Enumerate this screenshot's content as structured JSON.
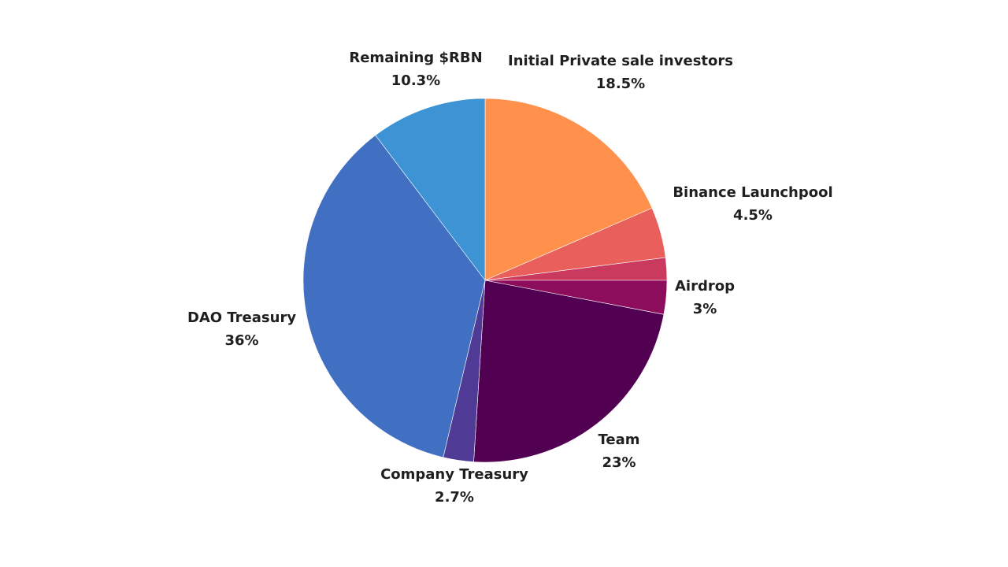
{
  "chart_data": {
    "type": "pie",
    "title": "",
    "slices": [
      {
        "name": "Initial Private sale investors",
        "value": 18.5,
        "display": "18.5%",
        "color": "#FF914D"
      },
      {
        "name": "Binance Launchpool",
        "value": 4.5,
        "display": "4.5%",
        "color": "#E85F5C"
      },
      {
        "name": "",
        "value": 2.0,
        "display": "",
        "color": "#C93A5E"
      },
      {
        "name": "Airdrop",
        "value": 3,
        "display": "3%",
        "color": "#8B0D5C"
      },
      {
        "name": "Team",
        "value": 23,
        "display": "23%",
        "color": "#520052"
      },
      {
        "name": "Company Treasury",
        "value": 2.7,
        "display": "2.7%",
        "color": "#4F3B96"
      },
      {
        "name": "DAO Treasury",
        "value": 36,
        "display": "36%",
        "color": "#416FC2"
      },
      {
        "name": "Remaining $RBN",
        "value": 10.3,
        "display": "10.3%",
        "color": "#3D93D3"
      }
    ]
  }
}
